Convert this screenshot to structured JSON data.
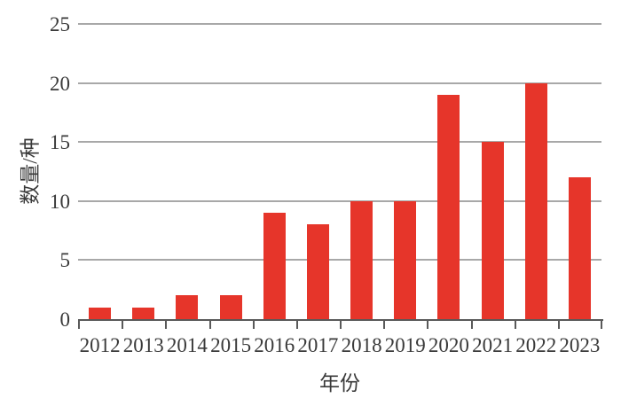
{
  "chart_data": {
    "type": "bar",
    "title": "",
    "categories": [
      "2012",
      "2013",
      "2014",
      "2015",
      "2016",
      "2017",
      "2018",
      "2019",
      "2020",
      "2021",
      "2022",
      "2023"
    ],
    "values": [
      1,
      1,
      2,
      2,
      9,
      8,
      10,
      10,
      19,
      15,
      20,
      12
    ],
    "xlabel": "年份",
    "ylabel": "数量/种",
    "ylim": [
      0,
      25
    ],
    "yticks": [
      0,
      5,
      10,
      15,
      20,
      25
    ],
    "grid": "horizontal",
    "legend": "none",
    "colors": {
      "bar": "#e6352a",
      "gridline": "#a8a8a8",
      "axis": "#595959",
      "text": "#3a3a3a",
      "background": "#ffffff"
    }
  }
}
